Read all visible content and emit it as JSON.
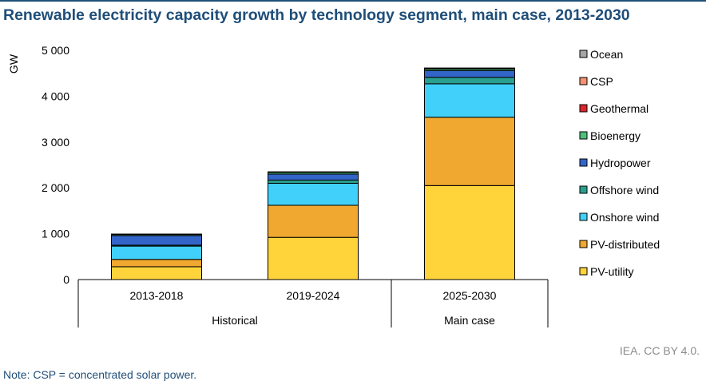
{
  "title": "Renewable electricity capacity growth by technology segment, main case, 2013-2030",
  "source": "IEA. CC BY 4.0.",
  "note": "Note: CSP = concentrated solar power.",
  "colors": {
    "PV-utility": "#ffd43b",
    "PV-distributed": "#f0a830",
    "Onshore wind": "#41d0f9",
    "Offshore wind": "#2a9f8f",
    "Hydropower": "#3365c9",
    "Bioenergy": "#4dc07a",
    "Geothermal": "#d9262c",
    "CSP": "#f59272",
    "Ocean": "#a6a6a6"
  },
  "chart_data": {
    "type": "bar",
    "stacked": true,
    "title": "Renewable electricity capacity growth by technology segment, main case, 2013-2030",
    "ylabel": "GW",
    "xlabel": "",
    "ylim": [
      0,
      5000
    ],
    "yticks": [
      0,
      1000,
      2000,
      3000,
      4000,
      5000
    ],
    "ytick_labels": [
      "0",
      "1 000",
      "2 000",
      "3 000",
      "4 000",
      "5 000"
    ],
    "categories": [
      "2013-2018",
      "2019-2024",
      "2025-2030"
    ],
    "groups": [
      {
        "label": "Historical",
        "categories": [
          "2013-2018",
          "2019-2024"
        ]
      },
      {
        "label": "Main case",
        "categories": [
          "2025-2030"
        ]
      }
    ],
    "legend_position": "right",
    "series": [
      {
        "name": "PV-utility",
        "values": [
          280,
          920,
          2050
        ]
      },
      {
        "name": "PV-distributed",
        "values": [
          160,
          700,
          1490
        ]
      },
      {
        "name": "Onshore wind",
        "values": [
          290,
          480,
          730
        ]
      },
      {
        "name": "Offshore wind",
        "values": [
          20,
          70,
          140
        ]
      },
      {
        "name": "Hydropower",
        "values": [
          210,
          130,
          150
        ]
      },
      {
        "name": "Bioenergy",
        "values": [
          25,
          40,
          35
        ]
      },
      {
        "name": "Geothermal",
        "values": [
          5,
          5,
          10
        ]
      },
      {
        "name": "CSP",
        "values": [
          2,
          5,
          10
        ]
      },
      {
        "name": "Ocean",
        "values": [
          0,
          0,
          0
        ]
      }
    ]
  }
}
